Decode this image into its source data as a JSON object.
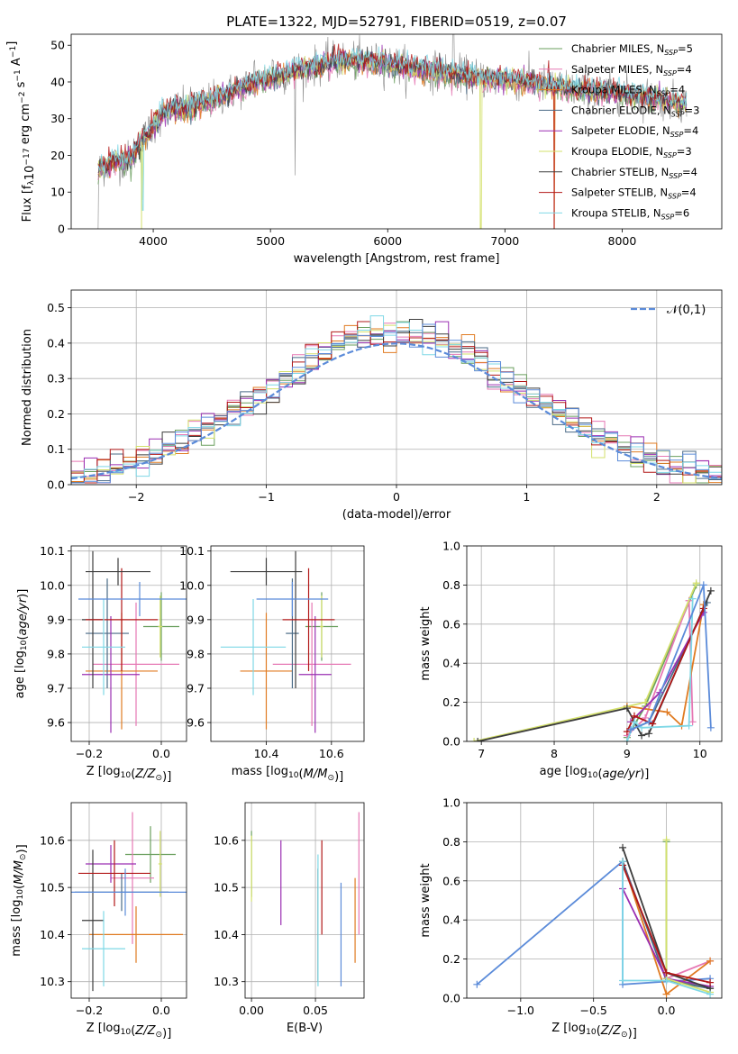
{
  "title": "PLATE=1322, MJD=52791, FIBERID=0519, z=0.07",
  "colors": {
    "Chabrier MILES": "#6a9f5e",
    "Salpeter MILES": "#e678b4",
    "Kroupa MILES": "#e07b22",
    "Chabrier ELODIE": "#4a6a86",
    "Salpeter ELODIE": "#9a2fb2",
    "Kroupa ELODIE": "#d3e06b",
    "Chabrier STELIB": "#3c3c3c",
    "Salpeter STELIB": "#b21818",
    "Kroupa STELIB": "#7fd8e6",
    "blue": "#5b8bd9"
  },
  "chart_data": [
    {
      "id": "spectrum",
      "type": "line",
      "title": "PLATE=1322, MJD=52791, FIBERID=0519, z=0.07",
      "xlabel": "wavelength [Angstrom, rest frame]",
      "ylabel": "Flux [f_λ10^-17 erg cm^-2 s^-1 A^-1]",
      "xlim": [
        3300,
        8850
      ],
      "ylim": [
        0,
        53
      ],
      "xticks": [
        "4000",
        "5000",
        "6000",
        "7000",
        "8000"
      ],
      "yticks": [
        "0",
        "10",
        "20",
        "30",
        "40",
        "50"
      ],
      "legend_position": "top-right",
      "legend": [
        {
          "name": "Chabrier MILES",
          "nssp": "5",
          "color": "#6a9f5e"
        },
        {
          "name": "Salpeter MILES",
          "nssp": "4",
          "color": "#e678b4"
        },
        {
          "name": "Kroupa MILES",
          "nssp": "4",
          "color": "#e07b22"
        },
        {
          "name": "Chabrier ELODIE",
          "nssp": "3",
          "color": "#4a6a86"
        },
        {
          "name": "Salpeter ELODIE",
          "nssp": "4",
          "color": "#9a2fb2"
        },
        {
          "name": "Kroupa ELODIE",
          "nssp": "3",
          "color": "#d3e06b"
        },
        {
          "name": "Chabrier STELIB",
          "nssp": "4",
          "color": "#3c3c3c"
        },
        {
          "name": "Salpeter STELIB",
          "nssp": "4",
          "color": "#b21818"
        },
        {
          "name": "Kroupa STELIB",
          "nssp": "6",
          "color": "#7fd8e6"
        }
      ],
      "continuum": [
        [
          3530,
          16
        ],
        [
          3650,
          18
        ],
        [
          3800,
          19
        ],
        [
          3950,
          26
        ],
        [
          4100,
          32
        ],
        [
          4300,
          33
        ],
        [
          4500,
          35
        ],
        [
          4800,
          39
        ],
        [
          5200,
          43
        ],
        [
          5600,
          46
        ],
        [
          6000,
          45
        ],
        [
          6400,
          43
        ],
        [
          6800,
          41
        ],
        [
          7200,
          40
        ],
        [
          7600,
          38
        ],
        [
          8000,
          37
        ],
        [
          8200,
          36
        ],
        [
          8550,
          34
        ]
      ],
      "features": [
        [
          3590,
          -15
        ],
        [
          3890,
          -22
        ],
        [
          3910,
          -20
        ],
        [
          4190,
          -24
        ],
        [
          5210,
          -28
        ],
        [
          5880,
          -10
        ],
        [
          6790,
          -40
        ],
        [
          7420,
          -40
        ],
        [
          6560,
          14
        ],
        [
          4860,
          5
        ],
        [
          5020,
          4
        ]
      ]
    },
    {
      "id": "residuals",
      "type": "histogram",
      "xlabel": "(data-model)/error",
      "ylabel": "Normed distribution",
      "xlim": [
        -2.5,
        2.5
      ],
      "ylim": [
        0,
        0.55
      ],
      "xticks": [
        "−2",
        "−1",
        "0",
        "1",
        "2"
      ],
      "yticks": [
        "0.0",
        "0.1",
        "0.2",
        "0.3",
        "0.4",
        "0.5"
      ],
      "bin_width": 0.1,
      "reference_label": "𝒩(0,1)",
      "reference_curve": "normal(0,1)",
      "legend_position": "top-right"
    },
    {
      "id": "Z-age",
      "type": "scatter",
      "xlabel": "Z [log10(Z/Z⊙)]",
      "ylabel": "age  [log10(age/yr)]",
      "xlim": [
        -0.25,
        0.07
      ],
      "ylim": [
        9.545,
        10.115
      ],
      "xticks": [
        "−0.2",
        "0.0"
      ],
      "yticks": [
        "9.6",
        "9.7",
        "9.8",
        "9.9",
        "10.0",
        "10.1"
      ],
      "points": [
        {
          "series": "Chabrier MILES",
          "x": 0.0,
          "xerr": 0.05,
          "y": 9.88,
          "yerr": 0.1
        },
        {
          "series": "Salpeter MILES",
          "x": -0.07,
          "xerr": 0.12,
          "y": 9.77,
          "yerr": 0.18
        },
        {
          "series": "Kroupa MILES",
          "x": -0.11,
          "xerr": 0.1,
          "y": 9.75,
          "yerr": 0.17
        },
        {
          "series": "Chabrier ELODIE",
          "x": -0.15,
          "xerr": 0.06,
          "y": 9.86,
          "yerr": 0.16
        },
        {
          "series": "Salpeter ELODIE",
          "x": -0.14,
          "xerr": 0.08,
          "y": 9.74,
          "yerr": 0.17
        },
        {
          "series": "Kroupa ELODIE",
          "x": -0.003,
          "xerr": 0.006,
          "y": 9.88,
          "yerr": 0.09
        },
        {
          "series": "Chabrier STELIB",
          "x": -0.19,
          "xerr": 0.03,
          "y": 9.9,
          "yerr": 0.2
        },
        {
          "series": "Salpeter STELIB",
          "x": -0.11,
          "xerr": 0.1,
          "y": 9.9,
          "yerr": 0.15
        },
        {
          "series": "Kroupa STELIB",
          "x": -0.16,
          "xerr": 0.06,
          "y": 9.82,
          "yerr": 0.14
        },
        {
          "series": "blue",
          "x": -0.06,
          "xerr": 0.17,
          "y": 9.96,
          "yerr": 0.05
        },
        {
          "series": "Chabrier STELIB",
          "x": -0.12,
          "xerr": 0.09,
          "y": 10.04,
          "yerr": 0.04
        }
      ]
    },
    {
      "id": "mass-age",
      "type": "scatter",
      "xlabel": "mass [log10(M/M⊙)]",
      "ylabel": "",
      "xlim": [
        10.23,
        10.7
      ],
      "ylim": [
        9.545,
        10.115
      ],
      "xticks": [
        "10.4",
        "10.6"
      ],
      "yticks": [
        "9.6",
        "9.7",
        "9.8",
        "9.9",
        "10.0",
        "10.1"
      ],
      "points": [
        {
          "series": "Chabrier MILES",
          "x": 10.57,
          "xerr": 0.05,
          "y": 9.88,
          "yerr": 0.1
        },
        {
          "series": "Salpeter MILES",
          "x": 10.54,
          "xerr": 0.12,
          "y": 9.77,
          "yerr": 0.18
        },
        {
          "series": "Kroupa MILES",
          "x": 10.4,
          "xerr": 0.08,
          "y": 9.75,
          "yerr": 0.17
        },
        {
          "series": "Chabrier ELODIE",
          "x": 10.48,
          "xerr": 0.02,
          "y": 9.86,
          "yerr": 0.16
        },
        {
          "series": "Salpeter ELODIE",
          "x": 10.55,
          "xerr": 0.05,
          "y": 9.74,
          "yerr": 0.17
        },
        {
          "series": "Kroupa ELODIE",
          "x": 10.57,
          "xerr": 0.005,
          "y": 9.88,
          "yerr": 0.09
        },
        {
          "series": "Chabrier STELIB",
          "x": 10.49,
          "xerr": 0.003,
          "y": 9.9,
          "yerr": 0.2
        },
        {
          "series": "Salpeter STELIB",
          "x": 10.53,
          "xerr": 0.08,
          "y": 9.9,
          "yerr": 0.15
        },
        {
          "series": "Kroupa STELIB",
          "x": 10.36,
          "xerr": 0.1,
          "y": 9.82,
          "yerr": 0.14
        },
        {
          "series": "blue",
          "x": 10.48,
          "xerr": 0.11,
          "y": 9.96,
          "yerr": 0.05
        },
        {
          "series": "Chabrier STELIB",
          "x": 10.4,
          "xerr": 0.11,
          "y": 10.04,
          "yerr": 0.04
        }
      ]
    },
    {
      "id": "age-weight",
      "type": "line",
      "xlabel": "age  [log10(age/yr)]",
      "ylabel": "mass weight",
      "xlim": [
        6.8,
        10.3
      ],
      "ylim": [
        0,
        1.0
      ],
      "xticks": [
        "7",
        "8",
        "9",
        "10"
      ],
      "yticks": [
        "0.0",
        "0.2",
        "0.4",
        "0.6",
        "0.8",
        "1.0"
      ],
      "series": [
        {
          "name": "Chabrier MILES",
          "x": [
            9.0,
            9.25,
            9.95
          ],
          "y": [
            0.02,
            0.18,
            0.8
          ]
        },
        {
          "name": "Salpeter MILES",
          "x": [
            9.0,
            9.25,
            9.85,
            9.9
          ],
          "y": [
            0.03,
            0.12,
            0.72,
            0.1
          ]
        },
        {
          "name": "Kroupa MILES",
          "x": [
            9.0,
            9.55,
            9.75,
            10.05
          ],
          "y": [
            0.18,
            0.15,
            0.08,
            0.7
          ]
        },
        {
          "name": "Chabrier ELODIE",
          "x": [
            9.05,
            9.3,
            10.1
          ],
          "y": [
            0.06,
            0.1,
            0.71
          ]
        },
        {
          "name": "Salpeter ELODIE",
          "x": [
            9.05,
            9.45,
            10.05
          ],
          "y": [
            0.1,
            0.25,
            0.66
          ]
        },
        {
          "name": "Kroupa ELODIE",
          "x": [
            6.9,
            9.25,
            9.95
          ],
          "y": [
            0.0,
            0.2,
            0.81
          ]
        },
        {
          "name": "Chabrier STELIB",
          "x": [
            6.95,
            9.0,
            9.2,
            9.3,
            10.15
          ],
          "y": [
            0.0,
            0.17,
            0.03,
            0.04,
            0.77
          ]
        },
        {
          "name": "Salpeter STELIB",
          "x": [
            9.0,
            9.1,
            9.35,
            10.05
          ],
          "y": [
            0.05,
            0.13,
            0.09,
            0.68
          ]
        },
        {
          "name": "Kroupa STELIB",
          "x": [
            9.0,
            9.1,
            9.2,
            9.85,
            9.9
          ],
          "y": [
            0.0,
            0.1,
            0.07,
            0.08,
            0.73
          ]
        },
        {
          "name": "blue",
          "x": [
            9.05,
            9.3,
            10.05,
            10.15
          ],
          "y": [
            0.06,
            0.1,
            0.8,
            0.07
          ]
        }
      ]
    },
    {
      "id": "Z-mass",
      "type": "scatter",
      "xlabel": "Z [log10(Z/Z⊙)]",
      "ylabel": "mass [log10(M/M⊙)]",
      "xlim": [
        -0.25,
        0.07
      ],
      "ylim": [
        10.265,
        10.68
      ],
      "xticks": [
        "−0.2",
        "0.0"
      ],
      "yticks": [
        "10.3",
        "10.4",
        "10.5",
        "10.6"
      ],
      "points": [
        {
          "series": "Chabrier MILES",
          "x": -0.03,
          "xerr": 0.07,
          "y": 10.57,
          "yerr": 0.06
        },
        {
          "series": "Salpeter MILES",
          "x": -0.08,
          "xerr": 0.06,
          "y": 10.52,
          "yerr": 0.14
        },
        {
          "series": "Kroupa MILES",
          "x": -0.07,
          "xerr": 0.13,
          "y": 10.4,
          "yerr": 0.06
        },
        {
          "series": "Chabrier ELODIE",
          "x": -0.11,
          "xerr": 0.13,
          "y": 10.49,
          "yerr": 0.04
        },
        {
          "series": "Salpeter ELODIE",
          "x": -0.14,
          "xerr": 0.07,
          "y": 10.55,
          "yerr": 0.04
        },
        {
          "series": "Kroupa ELODIE",
          "x": -0.003,
          "xerr": 0.005,
          "y": 10.55,
          "yerr": 0.07
        },
        {
          "series": "Chabrier STELIB",
          "x": -0.19,
          "xerr": 0.03,
          "y": 10.43,
          "yerr": 0.15
        },
        {
          "series": "Salpeter STELIB",
          "x": -0.13,
          "xerr": 0.1,
          "y": 10.53,
          "yerr": 0.07
        },
        {
          "series": "Kroupa STELIB",
          "x": -0.16,
          "xerr": 0.06,
          "y": 10.37,
          "yerr": 0.08
        },
        {
          "series": "blue",
          "x": -0.1,
          "xerr": 0.17,
          "y": 10.49,
          "yerr": 0.05
        }
      ]
    },
    {
      "id": "ebv-mass",
      "type": "scatter",
      "xlabel": "E(B-V)",
      "ylabel": "",
      "xlim": [
        -0.005,
        0.088
      ],
      "ylim": [
        10.265,
        10.68
      ],
      "xticks": [
        "0.00",
        "0.05"
      ],
      "yticks": [
        "10.3",
        "10.4",
        "10.5",
        "10.6"
      ],
      "points": [
        {
          "series": "Chabrier MILES",
          "x": 0.0,
          "y": 10.55,
          "yerr": 0.07
        },
        {
          "series": "Kroupa ELODIE",
          "x": 0.0,
          "y": 10.54,
          "yerr": 0.07
        },
        {
          "series": "Salpeter ELODIE",
          "x": 0.023,
          "y": 10.51,
          "yerr": 0.09
        },
        {
          "series": "Chabrier STELIB",
          "x": 0.052,
          "y": 10.42,
          "yerr": 0.12
        },
        {
          "series": "Kroupa STELIB",
          "x": 0.052,
          "y": 10.43,
          "yerr": 0.14
        },
        {
          "series": "Salpeter STELIB",
          "x": 0.055,
          "y": 10.5,
          "yerr": 0.1
        },
        {
          "series": "blue",
          "x": 0.07,
          "y": 10.4,
          "yerr": 0.11
        },
        {
          "series": "Kroupa MILES",
          "x": 0.081,
          "y": 10.43,
          "yerr": 0.09
        },
        {
          "series": "Salpeter MILES",
          "x": 0.084,
          "y": 10.53,
          "yerr": 0.13
        }
      ]
    },
    {
      "id": "Z-weight",
      "type": "line",
      "xlabel": "Z [log10(Z/Z⊙)]",
      "ylabel": "mass weight",
      "xlim": [
        -1.37,
        0.38
      ],
      "ylim": [
        0,
        1.0
      ],
      "xticks": [
        "−1.0",
        "−0.5",
        "0.0"
      ],
      "yticks": [
        "0.0",
        "0.2",
        "0.4",
        "0.6",
        "0.8",
        "1.0"
      ],
      "series": [
        {
          "name": "blue",
          "x": [
            -1.3,
            -0.3,
            -0.3,
            0.3
          ],
          "y": [
            0.07,
            0.7,
            0.07,
            0.1
          ]
        },
        {
          "name": "Chabrier MILES",
          "x": [
            0.0,
            0.0,
            0.3
          ],
          "y": [
            0.8,
            0.1,
            0.05
          ]
        },
        {
          "name": "Salpeter MILES",
          "x": [
            -0.3,
            0.0,
            0.3
          ],
          "y": [
            0.7,
            0.1,
            0.19
          ]
        },
        {
          "name": "Kroupa MILES",
          "x": [
            -0.3,
            0.0,
            0.3
          ],
          "y": [
            0.7,
            0.02,
            0.19
          ]
        },
        {
          "name": "Chabrier ELODIE",
          "x": [
            -0.3,
            0.0,
            0.3
          ],
          "y": [
            0.7,
            0.09,
            0.05
          ]
        },
        {
          "name": "Salpeter ELODIE",
          "x": [
            -0.3,
            0.0,
            0.3
          ],
          "y": [
            0.56,
            0.1,
            0.06
          ]
        },
        {
          "name": "Kroupa ELODIE",
          "x": [
            0.0,
            0.0,
            0.3
          ],
          "y": [
            0.81,
            0.1,
            0.03
          ]
        },
        {
          "name": "Chabrier STELIB",
          "x": [
            -0.3,
            0.0,
            0.3
          ],
          "y": [
            0.77,
            0.13,
            0.05
          ]
        },
        {
          "name": "Salpeter STELIB",
          "x": [
            -0.3,
            0.0,
            0.3
          ],
          "y": [
            0.68,
            0.13,
            0.08
          ]
        },
        {
          "name": "Kroupa STELIB",
          "x": [
            -0.3,
            -0.3,
            0.0,
            0.3
          ],
          "y": [
            0.7,
            0.09,
            0.09,
            0.02
          ]
        }
      ]
    }
  ]
}
